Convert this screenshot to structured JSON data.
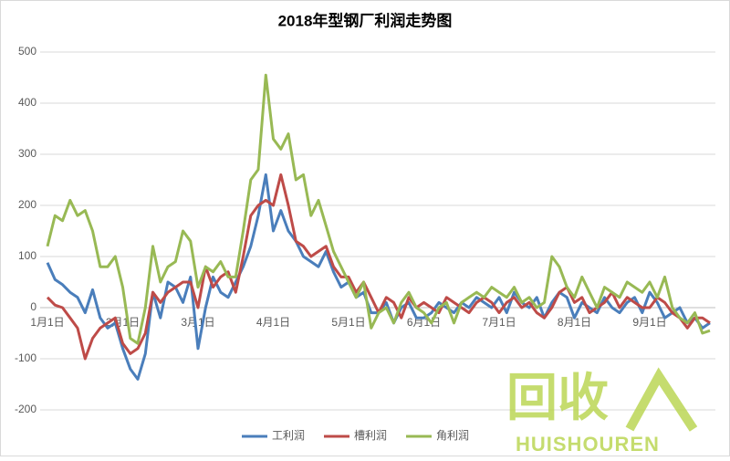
{
  "chart_data": {
    "type": "line",
    "title": "2018年型钢厂利润走势图",
    "categories": [
      "1月1日",
      null,
      null,
      null,
      null,
      null,
      null,
      null,
      null,
      null,
      "2月1日",
      null,
      null,
      null,
      null,
      null,
      null,
      null,
      null,
      null,
      "3月1日",
      null,
      null,
      null,
      null,
      null,
      null,
      null,
      null,
      null,
      "4月1日",
      null,
      null,
      null,
      null,
      null,
      null,
      null,
      null,
      null,
      "5月1日",
      null,
      null,
      null,
      null,
      null,
      null,
      null,
      null,
      null,
      "6月1日",
      null,
      null,
      null,
      null,
      null,
      null,
      null,
      null,
      null,
      "7月1日",
      null,
      null,
      null,
      null,
      null,
      null,
      null,
      null,
      null,
      "8月1日",
      null,
      null,
      null,
      null,
      null,
      null,
      null,
      null,
      null,
      "9月1日",
      null,
      null,
      null,
      null,
      null,
      null,
      null,
      null
    ],
    "series": [
      {
        "name": "工利润",
        "color": "#4a7ebb",
        "values": [
          88,
          55,
          45,
          30,
          20,
          -10,
          35,
          -20,
          -40,
          -30,
          -80,
          -120,
          -140,
          -90,
          30,
          -20,
          50,
          40,
          10,
          60,
          -80,
          0,
          60,
          30,
          20,
          50,
          80,
          120,
          180,
          260,
          150,
          190,
          150,
          130,
          100,
          90,
          80,
          110,
          70,
          40,
          50,
          20,
          30,
          -10,
          -10,
          10,
          -30,
          0,
          10,
          -20,
          -20,
          -10,
          10,
          0,
          -10,
          10,
          0,
          20,
          10,
          0,
          20,
          -10,
          30,
          10,
          0,
          20,
          -20,
          10,
          30,
          20,
          -20,
          10,
          0,
          -10,
          20,
          0,
          -10,
          10,
          20,
          -10,
          30,
          10,
          -20,
          -10,
          0,
          -30,
          -20,
          -40,
          -30
        ]
      },
      {
        "name": "槽利润",
        "color": "#be4b48",
        "values": [
          20,
          5,
          0,
          -20,
          -40,
          -100,
          -60,
          -40,
          -30,
          -20,
          -70,
          -90,
          -80,
          -50,
          30,
          10,
          30,
          40,
          50,
          50,
          0,
          80,
          40,
          60,
          70,
          30,
          100,
          180,
          200,
          210,
          200,
          260,
          200,
          130,
          120,
          100,
          110,
          120,
          80,
          60,
          60,
          30,
          50,
          20,
          -10,
          20,
          10,
          -20,
          20,
          0,
          10,
          0,
          -10,
          20,
          10,
          0,
          -10,
          10,
          20,
          10,
          -10,
          10,
          20,
          0,
          10,
          -10,
          -20,
          0,
          30,
          40,
          10,
          20,
          -10,
          0,
          10,
          30,
          0,
          20,
          10,
          0,
          0,
          20,
          10,
          -10,
          -20,
          -40,
          -20,
          -20,
          -30
        ]
      },
      {
        "name": "角利润",
        "color": "#98b954",
        "values": [
          120,
          180,
          170,
          210,
          180,
          190,
          150,
          80,
          80,
          100,
          40,
          -60,
          -70,
          0,
          120,
          50,
          80,
          90,
          150,
          130,
          40,
          80,
          70,
          90,
          60,
          60,
          150,
          250,
          270,
          455,
          330,
          310,
          340,
          250,
          260,
          180,
          210,
          160,
          110,
          80,
          50,
          20,
          50,
          -40,
          -10,
          0,
          -30,
          10,
          30,
          0,
          -10,
          -30,
          0,
          10,
          -30,
          10,
          20,
          30,
          20,
          40,
          30,
          20,
          40,
          10,
          20,
          0,
          10,
          100,
          80,
          40,
          20,
          60,
          30,
          0,
          40,
          30,
          20,
          50,
          40,
          30,
          50,
          20,
          60,
          0,
          -20,
          -30,
          -10,
          -50,
          -45
        ]
      }
    ],
    "ylim": [
      -200,
      500
    ],
    "yticks": [
      -200,
      -100,
      0,
      100,
      200,
      300,
      400,
      500
    ],
    "grid": true,
    "legend": "bottom",
    "watermark_logo": "回收",
    "watermark_text": "HUISHOUREN"
  }
}
